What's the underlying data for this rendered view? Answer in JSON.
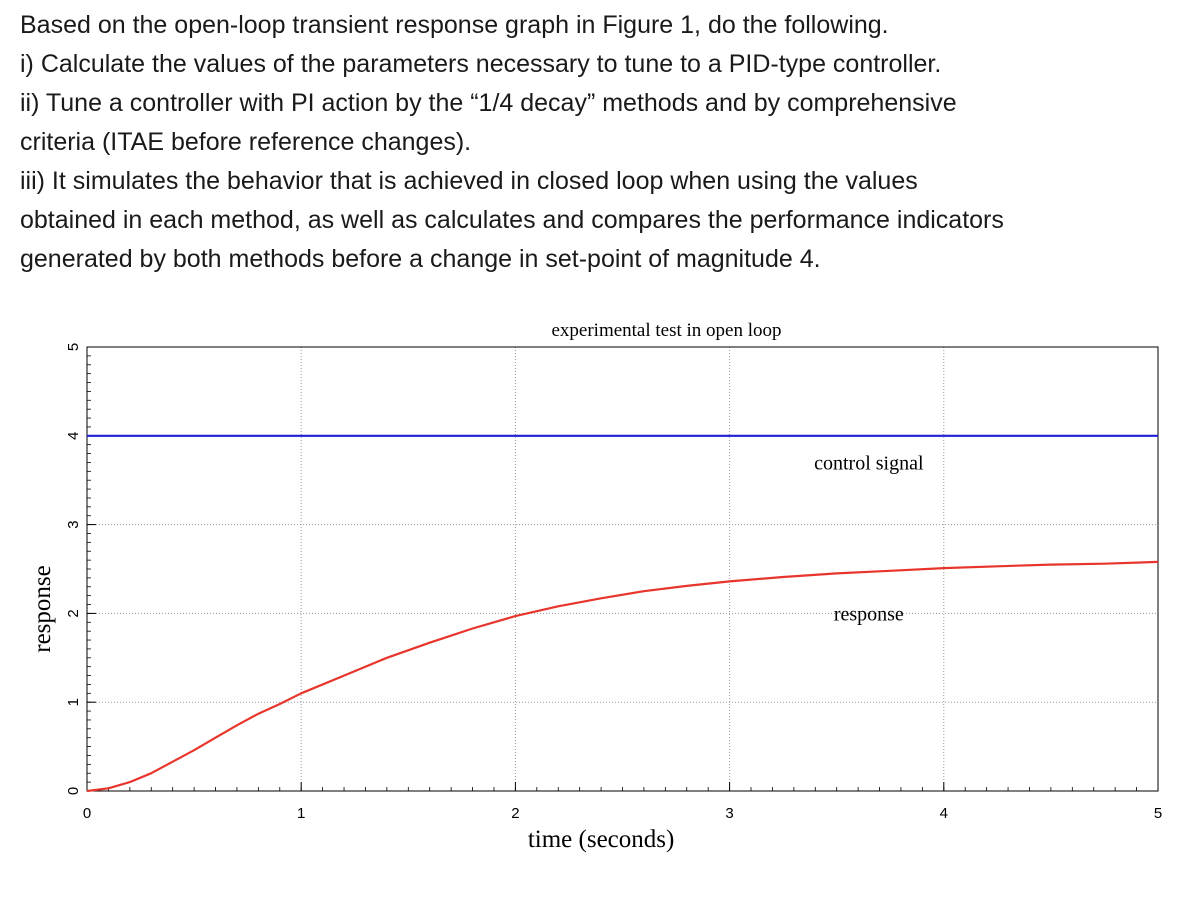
{
  "question": {
    "lines": [
      "Based on the open-loop transient response graph in Figure 1, do the following.",
      "i) Calculate the values of the parameters necessary to tune to a PID-type controller.",
      "ii) Tune a controller with PI action by the “1/4 decay” methods and by comprehensive",
      "criteria (ITAE before reference changes).",
      "iii) It simulates the behavior that is achieved in closed loop when using the values",
      "obtained in each method, as well as calculates and compares the performance indicators",
      "generated by both methods before a change in set-point of magnitude 4."
    ]
  },
  "chart_data": {
    "type": "line",
    "title": "experimental test in open loop",
    "xlabel": "time (seconds)",
    "ylabel": "response",
    "xlim": [
      0,
      5
    ],
    "ylim": [
      0,
      5
    ],
    "xticks": [
      "0",
      "1",
      "2",
      "3",
      "4",
      "5"
    ],
    "yticks": [
      "0",
      "1",
      "2",
      "3",
      "4",
      "5"
    ],
    "grid": true,
    "series": [
      {
        "name": "control signal",
        "color": "#1f1fd6",
        "x": [
          0,
          5
        ],
        "y": [
          4.0,
          4.0
        ]
      },
      {
        "name": "response",
        "color": "#e8352c",
        "x": [
          0,
          0.1,
          0.2,
          0.3,
          0.4,
          0.5,
          0.6,
          0.7,
          0.8,
          0.9,
          1.0,
          1.2,
          1.4,
          1.6,
          1.8,
          2.0,
          2.2,
          2.4,
          2.6,
          2.8,
          3.0,
          3.25,
          3.5,
          3.75,
          4.0,
          4.25,
          4.5,
          4.75,
          5.0
        ],
        "y": [
          0.0,
          0.03,
          0.1,
          0.2,
          0.33,
          0.46,
          0.6,
          0.74,
          0.87,
          0.98,
          1.1,
          1.3,
          1.5,
          1.67,
          1.83,
          1.97,
          2.08,
          2.17,
          2.25,
          2.31,
          2.36,
          2.41,
          2.45,
          2.48,
          2.51,
          2.53,
          2.55,
          2.56,
          2.58
        ]
      }
    ],
    "annotations": [
      {
        "text": "control signal",
        "x": 3.65,
        "y": 3.7
      },
      {
        "text": "response",
        "x": 3.65,
        "y": 2.0
      }
    ]
  }
}
